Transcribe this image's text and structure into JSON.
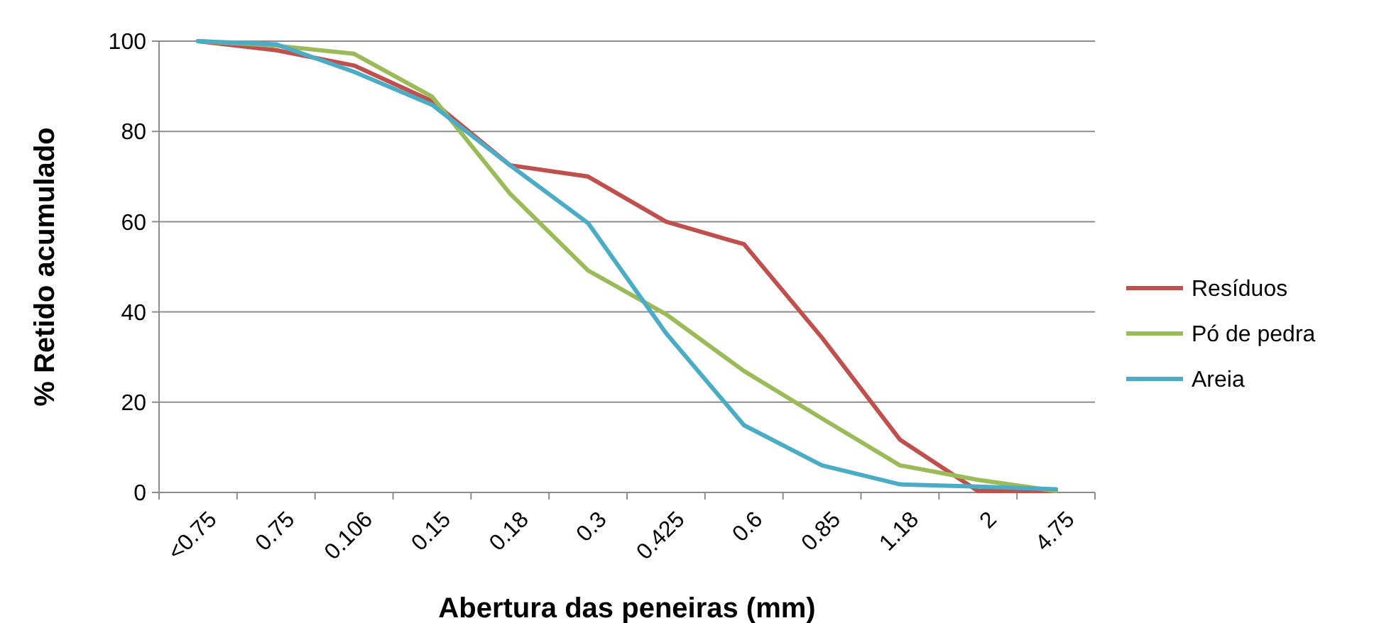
{
  "chart_data": {
    "type": "line",
    "xlabel": "Abertura das peneiras (mm)",
    "ylabel": "% Retido acumulado",
    "categories": [
      "<0.75",
      "0.75",
      "0.106",
      "0.15",
      "0.18",
      "0.3",
      "0.425",
      "0.6",
      "0.85",
      "1.18",
      "2",
      "4.75"
    ],
    "series": [
      {
        "name": "Resíduos",
        "color": "#c0504d",
        "values": [
          100,
          98,
          94.6,
          86.7,
          72.5,
          70,
          60,
          55,
          34.3,
          11.7,
          0.3,
          0.3
        ]
      },
      {
        "name": "Pó de pedra",
        "color": "#9bbb59",
        "values": [
          100,
          99,
          97.2,
          87.7,
          66.2,
          49.2,
          39.5,
          26.9,
          16.4,
          6,
          2.8,
          0.3
        ]
      },
      {
        "name": "Areia",
        "color": "#4bacc6",
        "values": [
          100,
          99.3,
          93.2,
          85.9,
          72.5,
          59.7,
          35.3,
          14.9,
          6,
          1.8,
          1.3,
          0.7
        ]
      }
    ],
    "ylim": [
      0,
      100
    ],
    "yticks": [
      0,
      20,
      40,
      60,
      80,
      100
    ],
    "grid": "y",
    "legend": "right",
    "marker": "none",
    "line_style": "solid"
  }
}
